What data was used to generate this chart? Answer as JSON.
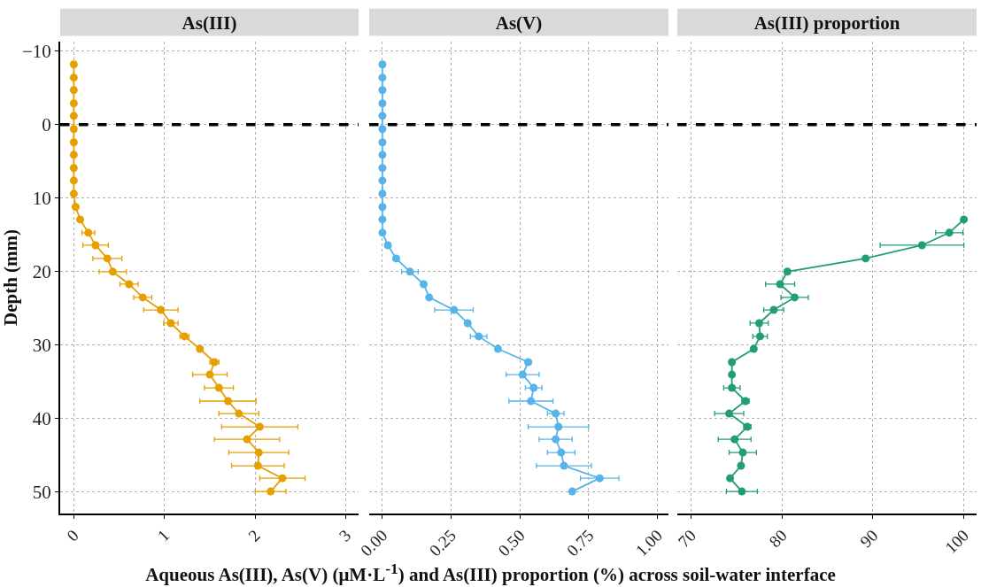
{
  "chart_data": [
    {
      "type": "line",
      "title": "As(III)",
      "ylabel": "Depth (mm)",
      "x": [
        0,
        0,
        0,
        0,
        0,
        0,
        0,
        0,
        0,
        0,
        0,
        0.02,
        0.07,
        0.16,
        0.24,
        0.37,
        0.43,
        0.61,
        0.76,
        0.96,
        1.07,
        1.22,
        1.39,
        1.55,
        1.5,
        1.6,
        1.7,
        1.82,
        2.05,
        1.91,
        2.04,
        2.03,
        2.3,
        2.17
      ],
      "values": [
        -8.2,
        -6.4,
        -4.7,
        -2.9,
        -1.2,
        0.6,
        2.4,
        4.1,
        5.9,
        7.6,
        9.4,
        11.2,
        12.9,
        14.7,
        16.4,
        18.2,
        20.0,
        21.7,
        23.5,
        25.2,
        27.0,
        28.8,
        30.5,
        32.3,
        34.0,
        35.8,
        37.6,
        39.3,
        41.1,
        42.8,
        44.6,
        46.4,
        48.1,
        49.9
      ],
      "xerrors": [
        null,
        null,
        null,
        null,
        null,
        null,
        null,
        null,
        null,
        null,
        null,
        null,
        null,
        0.07,
        0.14,
        0.16,
        0.15,
        0.1,
        0.1,
        0.19,
        0.08,
        0.05,
        null,
        0.05,
        0.19,
        0.16,
        0.31,
        0.22,
        0.42,
        0.36,
        0.33,
        0.29,
        0.25,
        0.17
      ],
      "color": "#e69f00",
      "xlim": [
        -0.15,
        3.14
      ],
      "xticks": [
        0,
        1,
        2,
        3
      ],
      "ylim": [
        52.9,
        -11.3
      ],
      "yticks": [
        {
          "value": -10,
          "label": "−10"
        },
        0,
        10,
        20,
        30,
        40,
        50
      ],
      "ref_lines": [
        {
          "axis": "y",
          "value": 0,
          "line_style": "dashed",
          "color": "#000000"
        }
      ],
      "grid": true,
      "marker": "circle",
      "line_style": "solid"
    },
    {
      "type": "line",
      "title": "As(V)",
      "xlabel": "Aqueous As(III), As(V) (μM·L$^{-1}$) and As(III) proportion (%) across soil-water interface",
      "x": [
        0,
        0,
        0,
        0,
        0,
        0,
        0,
        0,
        0,
        0,
        0,
        0,
        0,
        0,
        0.02,
        0.05,
        0.1,
        0.15,
        0.17,
        0.26,
        0.31,
        0.35,
        0.42,
        0.53,
        0.51,
        0.55,
        0.54,
        0.63,
        0.64,
        0.63,
        0.65,
        0.66,
        0.79,
        0.69
      ],
      "values": [
        -8.2,
        -6.4,
        -4.7,
        -2.9,
        -1.2,
        0.6,
        2.4,
        4.1,
        5.9,
        7.6,
        9.4,
        11.2,
        12.9,
        14.7,
        16.4,
        18.2,
        20.0,
        21.7,
        23.5,
        25.2,
        27.0,
        28.8,
        30.5,
        32.3,
        34.0,
        35.8,
        37.6,
        39.3,
        41.1,
        42.8,
        44.6,
        46.4,
        48.1,
        49.9
      ],
      "xerrors": [
        null,
        null,
        null,
        null,
        null,
        null,
        null,
        null,
        null,
        null,
        null,
        null,
        null,
        null,
        0.01,
        0.01,
        0.03,
        null,
        null,
        0.07,
        null,
        0.03,
        null,
        0.01,
        0.06,
        0.03,
        0.08,
        0.03,
        0.11,
        0.06,
        0.05,
        0.1,
        0.07,
        null
      ],
      "color": "#56b4e9",
      "xlim": [
        -0.048,
        1.04
      ],
      "xticks": [
        {
          "value": 0,
          "label": "0.00"
        },
        0.25,
        {
          "value": 0.5,
          "label": "0.50"
        },
        0.75,
        {
          "value": 1,
          "label": "1.00"
        }
      ],
      "ylim": [
        52.9,
        -11.3
      ],
      "yticks": [
        -10,
        0,
        10,
        20,
        30,
        40,
        50
      ],
      "tick_labels": "x",
      "ref_lines": [
        {
          "axis": "y",
          "value": 0,
          "line_style": "dashed",
          "color": "#000000"
        }
      ],
      "grid": true,
      "marker": "circle",
      "line_style": "solid"
    },
    {
      "type": "line",
      "title": "As(III) proportion",
      "x": [
        100,
        98.4,
        95.4,
        89.2,
        80.6,
        79.8,
        81.4,
        79.1,
        77.5,
        77.6,
        76.9,
        74.5,
        74.5,
        74.5,
        76.0,
        74.2,
        76.2,
        74.8,
        75.7,
        75.5,
        74.3,
        75.6
      ],
      "values": [
        12.9,
        14.7,
        16.4,
        18.2,
        20.0,
        21.7,
        23.5,
        25.2,
        27.0,
        28.8,
        30.5,
        32.3,
        34.0,
        35.8,
        37.6,
        39.3,
        41.1,
        42.8,
        44.6,
        46.4,
        48.1,
        49.9
      ],
      "xerrors": [
        null,
        1.5,
        4.6,
        null,
        0.3,
        1.6,
        1.5,
        1.1,
        1.0,
        0.8,
        null,
        null,
        null,
        0.9,
        0.4,
        1.6,
        0.4,
        1.8,
        1.5,
        null,
        null,
        1.7
      ],
      "color": "#229e73",
      "xlim": [
        68.5,
        101.4
      ],
      "xticks": [
        70,
        80,
        90,
        100
      ],
      "ylim": [
        52.9,
        -11.3
      ],
      "yticks": [
        -10,
        0,
        10,
        20,
        30,
        40,
        50
      ],
      "tick_labels": "x",
      "ref_lines": [
        {
          "axis": "y",
          "value": 0,
          "line_style": "dashed",
          "color": "#000000"
        }
      ],
      "grid": true,
      "marker": "circle",
      "line_style": "solid"
    }
  ]
}
